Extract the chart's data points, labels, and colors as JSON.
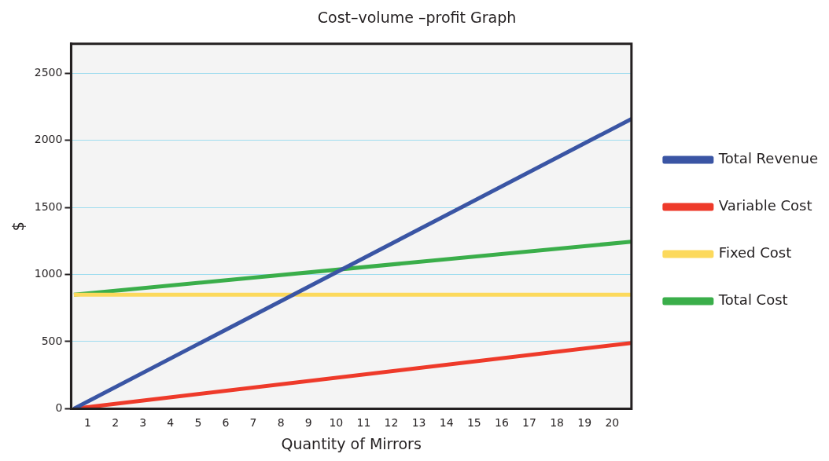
{
  "chart_data": {
    "type": "line",
    "title": "Cost–volume –profit Graph",
    "xlabel": "Quantity of Mirrors",
    "ylabel": "$",
    "x": [
      0.5,
      20.7
    ],
    "series": [
      {
        "name": "Total Revenue",
        "color": "#3a55a4",
        "values": [
          0,
          2160
        ]
      },
      {
        "name": "Variable Cost",
        "color": "#ee3a2a",
        "values": [
          0,
          490
        ]
      },
      {
        "name": "Fixed Cost",
        "color": "#fcd95c",
        "values": [
          850,
          850
        ]
      },
      {
        "name": "Total Cost",
        "color": "#3aae4a",
        "values": [
          850,
          1245
        ]
      }
    ],
    "xlim": [
      0.4,
      20.7
    ],
    "xticks": [
      1,
      2,
      3,
      4,
      5,
      6,
      7,
      8,
      9,
      10,
      11,
      12,
      13,
      14,
      15,
      16,
      17,
      18,
      19,
      20
    ],
    "ylim": [
      0,
      2720
    ],
    "yticks": [
      0,
      500,
      1000,
      1500,
      2000,
      2500
    ],
    "grid": "y",
    "legend": "right",
    "marker": "none",
    "line_style": "solid"
  }
}
